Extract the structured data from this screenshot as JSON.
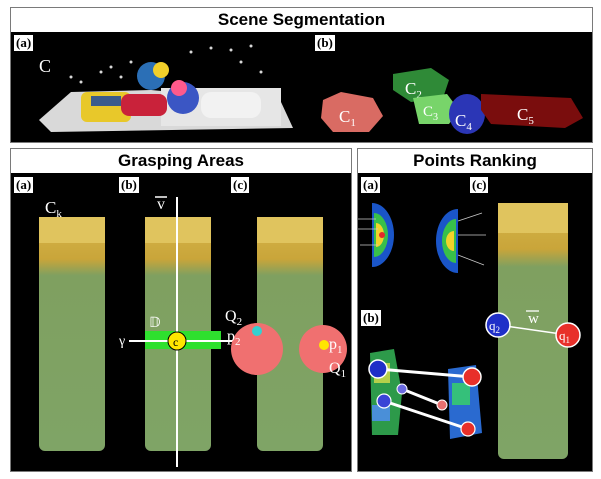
{
  "top": {
    "title": "Scene Segmentation",
    "label_a": "(a)",
    "label_b": "(b)",
    "scene_label": "C",
    "clusters": [
      {
        "name": "C",
        "sub": "1",
        "color": "#d96b63"
      },
      {
        "name": "C",
        "sub": "2",
        "color": "#2f8a37"
      },
      {
        "name": "C",
        "sub": "3",
        "color": "#78d46a"
      },
      {
        "name": "C",
        "sub": "4",
        "color": "#2b36b6"
      },
      {
        "name": "C",
        "sub": "5",
        "color": "#7a0d0d"
      }
    ]
  },
  "grasp": {
    "title": "Grasping Areas",
    "label_a": "(a)",
    "label_b": "(b)",
    "label_c": "(c)",
    "ck": "C",
    "ck_sub": "k",
    "v_label": "v",
    "gamma_label": "γ",
    "d_label": "𝔻",
    "c_label": "c",
    "q2": "Q",
    "q2_sub": "2",
    "q1": "Q",
    "q1_sub": "1",
    "p2": "p",
    "p2_sub": "2",
    "p1": "p",
    "p1_sub": "1"
  },
  "rank": {
    "title": "Points Ranking",
    "label_a": "(a)",
    "label_b": "(b)",
    "label_c": "(c)",
    "w_label": "w",
    "q2": "q",
    "q2_sub": "2",
    "q1": "q",
    "q1_sub": "1"
  },
  "colors": {
    "q_red": "#e8302a",
    "q_blue": "#1f2fc8",
    "region_pink": "#f07070",
    "d_green": "#2ee02e",
    "p_yellow": "#ffe600",
    "p_cyan": "#34d0d0"
  }
}
